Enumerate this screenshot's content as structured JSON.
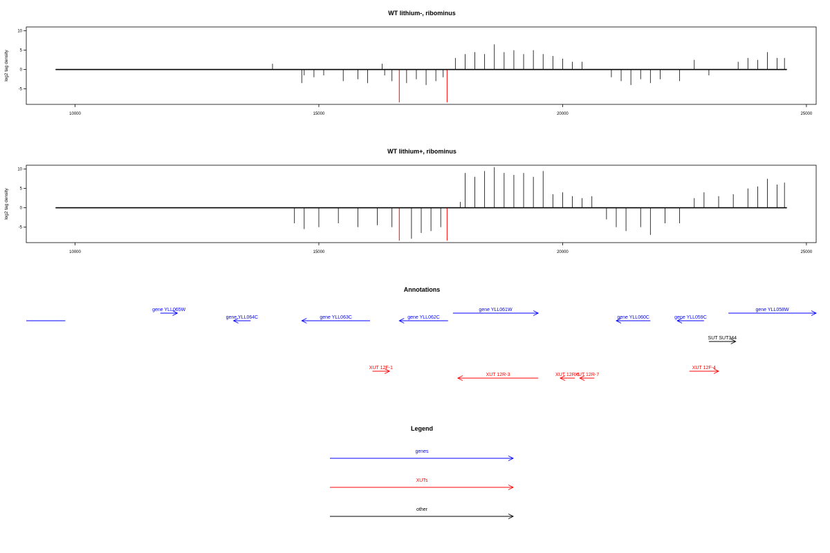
{
  "colors": {
    "gene": "#0000ff",
    "xut": "#ff0000",
    "other": "#000000",
    "signal": "#000000",
    "peak": "#ff0000"
  },
  "chart_data": [
    {
      "type": "bar",
      "title": "WT lithium-, ribominus",
      "ylabel": "log2 tag density",
      "xlim": [
        9000,
        25200
      ],
      "ylim": [
        -9,
        11
      ],
      "xticks": [
        10000,
        15000,
        20000,
        25000
      ],
      "yticks": [
        -5,
        0,
        5,
        10
      ],
      "baseline": [
        9600,
        24600
      ],
      "red_peaks": [
        {
          "x": 16650,
          "y": -8.5
        },
        {
          "x": 17630,
          "y": -8.5
        }
      ],
      "series": [
        {
          "x": [
            14050,
            14650,
            14700,
            14900,
            15100,
            15500,
            15800,
            16000,
            16300,
            16350,
            16500,
            16800,
            17000,
            17200,
            17400,
            17550,
            17800,
            18000,
            18200,
            18400,
            18600,
            18800,
            19000,
            19200,
            19400,
            19600,
            19800,
            20000,
            20200,
            20400,
            21000,
            21200,
            21400,
            21600,
            21800,
            22000,
            22400,
            22700,
            23000,
            23600,
            23800,
            24000,
            24200,
            24400,
            24550
          ],
          "y": [
            1.5,
            -3.5,
            -1.5,
            -2,
            -1.5,
            -3,
            -2.5,
            -3.5,
            1.5,
            -1.5,
            -3,
            -3.5,
            -2.5,
            -4,
            -3,
            -2,
            3,
            4,
            4.5,
            4,
            6.5,
            4.5,
            5,
            4,
            5,
            4,
            3.5,
            2.8,
            2,
            2,
            -2,
            -3,
            -4,
            -2.5,
            -3.5,
            -2.5,
            -3,
            2.5,
            -1.5,
            2,
            3,
            2.5,
            4.5,
            3,
            3
          ]
        }
      ]
    },
    {
      "type": "bar",
      "title": "WT lithium+, ribominus",
      "ylabel": "log2 tag density",
      "xlim": [
        9000,
        25200
      ],
      "ylim": [
        -9,
        11
      ],
      "xticks": [
        10000,
        15000,
        20000,
        25000
      ],
      "yticks": [
        -5,
        0,
        5,
        10
      ],
      "baseline": [
        9600,
        24600
      ],
      "red_peaks": [
        {
          "x": 16650,
          "y": -8.5
        },
        {
          "x": 17630,
          "y": -8.5
        }
      ],
      "series": [
        {
          "x": [
            14500,
            14700,
            15000,
            15400,
            15800,
            16200,
            16500,
            16900,
            17100,
            17300,
            17500,
            17900,
            18000,
            18200,
            18400,
            18600,
            18800,
            19000,
            19200,
            19400,
            19600,
            19800,
            20000,
            20200,
            20400,
            20600,
            20900,
            21100,
            21300,
            21600,
            21800,
            22100,
            22400,
            22700,
            22900,
            23200,
            23500,
            23800,
            24000,
            24200,
            24400,
            24550
          ],
          "y": [
            -4,
            -5.5,
            -5,
            -4,
            -5,
            -4.5,
            -5,
            -8,
            -6.5,
            -6,
            -5,
            1.5,
            9,
            8,
            9.5,
            10.5,
            9,
            8.5,
            9,
            8,
            9.5,
            3.5,
            4,
            3,
            2.5,
            3,
            -3,
            -5,
            -6,
            -5,
            -7,
            -4,
            -4,
            2.5,
            4,
            3,
            3.5,
            5,
            5.5,
            7.5,
            6,
            6.5
          ]
        }
      ]
    },
    {
      "type": "table",
      "title": "Annotations",
      "xlim": [
        9000,
        25200
      ],
      "features": [
        {
          "label": "",
          "kind": "gene",
          "start": 9000,
          "end": 9800,
          "dir": "none",
          "row": 1
        },
        {
          "label": "gene YLL065W",
          "kind": "gene",
          "start": 11750,
          "end": 12100,
          "dir": "right",
          "row": 0
        },
        {
          "label": "gene YLL064C",
          "kind": "gene",
          "start": 13250,
          "end": 13600,
          "dir": "left",
          "row": 1
        },
        {
          "label": "gene YLL063C",
          "kind": "gene",
          "start": 14650,
          "end": 16050,
          "dir": "left",
          "row": 1
        },
        {
          "label": "gene YLL062C",
          "kind": "gene",
          "start": 16650,
          "end": 17650,
          "dir": "left",
          "row": 1
        },
        {
          "label": "gene YLL061W",
          "kind": "gene",
          "start": 17750,
          "end": 19500,
          "dir": "right",
          "row": 0
        },
        {
          "label": "gene YLL060C",
          "kind": "gene",
          "start": 21100,
          "end": 21800,
          "dir": "left",
          "row": 1
        },
        {
          "label": "gene YLL059C",
          "kind": "gene",
          "start": 22350,
          "end": 22900,
          "dir": "left",
          "row": 1
        },
        {
          "label": "gene YLL058W",
          "kind": "gene",
          "start": 23400,
          "end": 25200,
          "dir": "right",
          "row": 0
        },
        {
          "label": "SUT SUT344",
          "kind": "other",
          "start": 23000,
          "end": 23550,
          "dir": "right",
          "row": 2
        },
        {
          "label": "XUT 12F-1",
          "kind": "xut",
          "start": 16100,
          "end": 16450,
          "dir": "right",
          "row": 3
        },
        {
          "label": "XUT 12R-3",
          "kind": "xut",
          "start": 17850,
          "end": 19500,
          "dir": "left",
          "row": 4
        },
        {
          "label": "XUT 12R-5",
          "kind": "xut",
          "start": 19950,
          "end": 20250,
          "dir": "left",
          "row": 4
        },
        {
          "label": "XUT 12R-7",
          "kind": "xut",
          "start": 20350,
          "end": 20650,
          "dir": "left",
          "row": 4
        },
        {
          "label": "XUT 12F-4",
          "kind": "xut",
          "start": 22600,
          "end": 23200,
          "dir": "right",
          "row": 3
        }
      ]
    },
    {
      "type": "table",
      "title": "Legend",
      "entries": [
        {
          "label": "genes",
          "kind": "gene"
        },
        {
          "label": "XUTs",
          "kind": "xut"
        },
        {
          "label": "other",
          "kind": "other"
        }
      ]
    }
  ]
}
